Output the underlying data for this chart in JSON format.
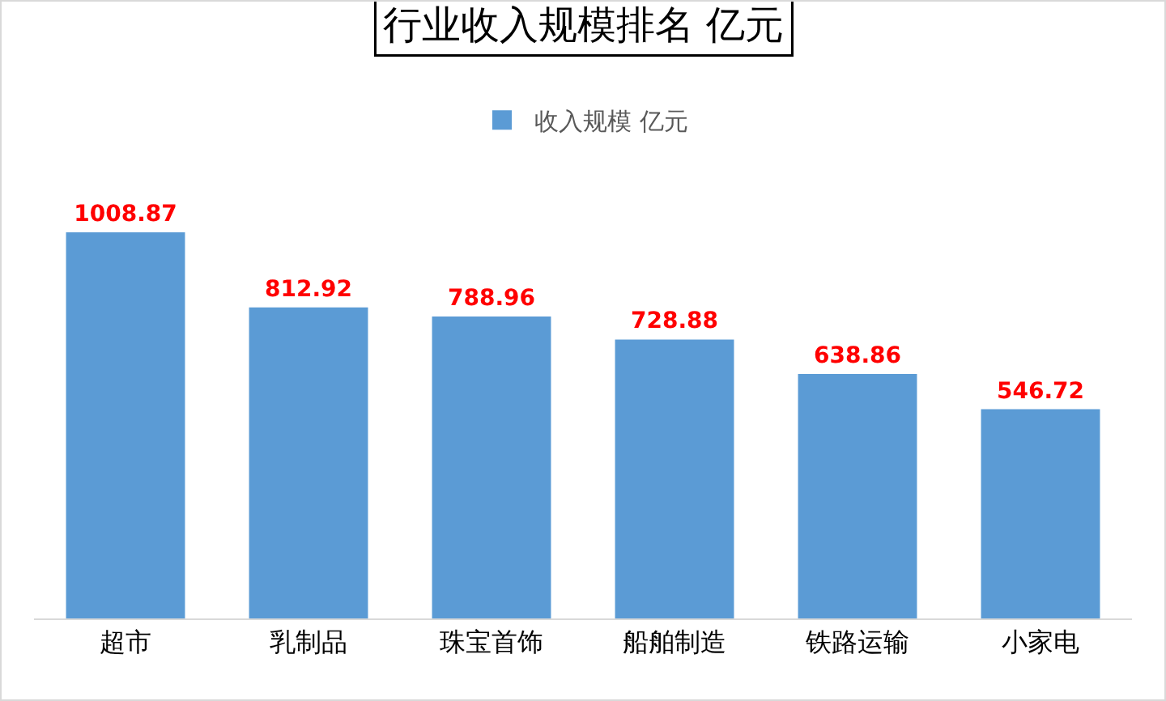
{
  "chart_data": {
    "type": "bar",
    "title": "行业收入规模排名 亿元",
    "categories": [
      "超市",
      "乳制品",
      "珠宝首饰",
      "船舶制造",
      "铁路运输",
      "小家电"
    ],
    "series": [
      {
        "name": "收入规模 亿元",
        "color": "#5b9bd5",
        "values": [
          1008.87,
          812.92,
          788.96,
          728.88,
          638.86,
          546.72
        ]
      }
    ],
    "data_labels": true,
    "legend": "top",
    "grid": false
  }
}
